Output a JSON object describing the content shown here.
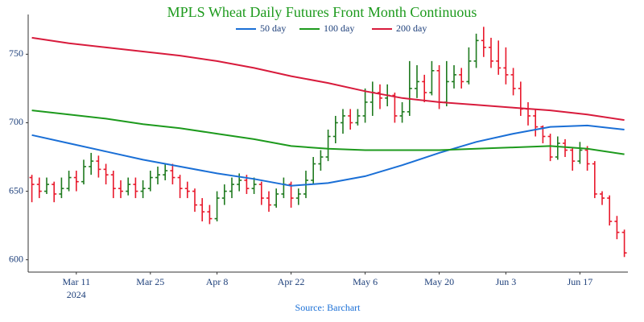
{
  "chart_data": {
    "type": "ohlc",
    "title": "MPLS Wheat Daily Futures Front Month Continuous",
    "source": "Source: Barchart",
    "categories": [
      "Mar 1",
      "Mar 4",
      "Mar 5",
      "Mar 6",
      "Mar 7",
      "Mar 8",
      "Mar 11",
      "Mar 12",
      "Mar 13",
      "Mar 14",
      "Mar 15",
      "Mar 18",
      "Mar 19",
      "Mar 20",
      "Mar 21",
      "Mar 22",
      "Mar 25",
      "Mar 26",
      "Mar 27",
      "Mar 28",
      "Apr 1",
      "Apr 2",
      "Apr 3",
      "Apr 4",
      "Apr 5",
      "Apr 8",
      "Apr 9",
      "Apr 10",
      "Apr 11",
      "Apr 12",
      "Apr 15",
      "Apr 16",
      "Apr 17",
      "Apr 18",
      "Apr 19",
      "Apr 22",
      "Apr 23",
      "Apr 24",
      "Apr 25",
      "Apr 26",
      "Apr 29",
      "Apr 30",
      "May 1",
      "May 2",
      "May 3",
      "May 6",
      "May 7",
      "May 8",
      "May 9",
      "May 10",
      "May 13",
      "May 14",
      "May 15",
      "May 16",
      "May 17",
      "May 20",
      "May 21",
      "May 22",
      "May 23",
      "May 24",
      "May 28",
      "May 29",
      "May 30",
      "May 31",
      "Jun 3",
      "Jun 4",
      "Jun 5",
      "Jun 6",
      "Jun 7",
      "Jun 10",
      "Jun 11",
      "Jun 12",
      "Jun 13",
      "Jun 14",
      "Jun 17",
      "Jun 18",
      "Jun 20",
      "Jun 21",
      "Jun 24",
      "Jun 25",
      "Jun 26"
    ],
    "open": [
      660,
      655,
      650,
      655,
      648,
      652,
      660,
      657,
      668,
      672,
      666,
      662,
      652,
      650,
      655,
      650,
      652,
      660,
      662,
      665,
      660,
      652,
      650,
      640,
      635,
      630,
      645,
      650,
      655,
      658,
      652,
      655,
      645,
      640,
      648,
      655,
      645,
      648,
      658,
      670,
      675,
      690,
      700,
      705,
      700,
      705,
      715,
      722,
      718,
      720,
      705,
      708,
      725,
      730,
      722,
      738,
      715,
      730,
      735,
      730,
      745,
      760,
      755,
      745,
      740,
      735,
      725,
      710,
      705,
      697,
      690,
      675,
      685,
      680,
      672,
      680,
      670,
      648,
      645,
      628,
      620
    ],
    "high": [
      662,
      660,
      660,
      657,
      660,
      665,
      665,
      673,
      678,
      676,
      670,
      665,
      658,
      660,
      660,
      658,
      665,
      668,
      670,
      670,
      662,
      657,
      652,
      645,
      640,
      650,
      655,
      660,
      663,
      662,
      660,
      657,
      650,
      652,
      660,
      657,
      652,
      665,
      675,
      680,
      695,
      705,
      710,
      710,
      710,
      725,
      730,
      728,
      728,
      722,
      715,
      745,
      742,
      735,
      745,
      742,
      745,
      742,
      740,
      755,
      765,
      770,
      762,
      760,
      755,
      740,
      730,
      715,
      710,
      698,
      692,
      690,
      688,
      682,
      686,
      683,
      672,
      650,
      647,
      632,
      622
    ],
    "low": [
      642,
      645,
      648,
      642,
      645,
      650,
      650,
      655,
      662,
      660,
      655,
      645,
      645,
      647,
      645,
      645,
      650,
      655,
      658,
      655,
      645,
      645,
      635,
      628,
      626,
      628,
      640,
      645,
      650,
      648,
      648,
      640,
      635,
      638,
      645,
      638,
      640,
      645,
      655,
      665,
      672,
      685,
      692,
      695,
      698,
      700,
      705,
      710,
      712,
      700,
      700,
      705,
      718,
      715,
      720,
      710,
      712,
      725,
      725,
      728,
      740,
      748,
      740,
      735,
      728,
      720,
      705,
      698,
      690,
      685,
      672,
      673,
      675,
      665,
      670,
      665,
      645,
      640,
      625,
      615,
      602
    ],
    "close": [
      655,
      650,
      655,
      648,
      652,
      660,
      657,
      668,
      672,
      666,
      662,
      652,
      650,
      655,
      650,
      652,
      660,
      662,
      665,
      660,
      652,
      650,
      640,
      635,
      630,
      645,
      650,
      655,
      658,
      652,
      655,
      645,
      640,
      648,
      655,
      645,
      648,
      658,
      670,
      675,
      690,
      700,
      705,
      700,
      705,
      715,
      722,
      718,
      720,
      705,
      708,
      725,
      730,
      722,
      738,
      715,
      730,
      735,
      730,
      745,
      760,
      755,
      745,
      740,
      735,
      725,
      710,
      705,
      697,
      690,
      675,
      685,
      680,
      672,
      680,
      670,
      648,
      645,
      628,
      620,
      605
    ],
    "up_color": "#1f7a1f",
    "down_color": "#e8192c",
    "moving_averages": [
      {
        "name": "50 day",
        "color": "#1a6fd6",
        "x": [
          "Mar 1",
          "Mar 8",
          "Mar 15",
          "Mar 22",
          "Apr 1",
          "Apr 8",
          "Apr 15",
          "Apr 22",
          "Apr 29",
          "May 6",
          "May 13",
          "May 20",
          "May 28",
          "Jun 4",
          "Jun 11",
          "Jun 18",
          "Jun 26"
        ],
        "values": [
          691,
          685,
          679,
          673,
          668,
          663,
          659,
          654,
          656,
          661,
          669,
          678,
          686,
          692,
          697,
          698,
          695
        ]
      },
      {
        "name": "100 day",
        "color": "#1d9a1d",
        "x": [
          "Mar 1",
          "Mar 8",
          "Mar 15",
          "Mar 22",
          "Apr 1",
          "Apr 8",
          "Apr 15",
          "Apr 22",
          "Apr 29",
          "May 6",
          "May 13",
          "May 20",
          "May 28",
          "Jun 4",
          "Jun 11",
          "Jun 18",
          "Jun 26"
        ],
        "values": [
          709,
          706,
          703,
          699,
          696,
          692,
          688,
          683,
          681,
          680,
          680,
          680,
          681,
          682,
          683,
          681,
          677
        ]
      },
      {
        "name": "200 day",
        "color": "#d81b3c",
        "x": [
          "Mar 1",
          "Mar 8",
          "Mar 15",
          "Mar 22",
          "Apr 1",
          "Apr 8",
          "Apr 15",
          "Apr 22",
          "Apr 29",
          "May 6",
          "May 13",
          "May 20",
          "May 28",
          "Jun 4",
          "Jun 11",
          "Jun 18",
          "Jun 26"
        ],
        "values": [
          762,
          758,
          755,
          752,
          749,
          745,
          740,
          734,
          729,
          723,
          718,
          715,
          713,
          711,
          709,
          706,
          702
        ]
      }
    ],
    "xticks": [
      "Mar 11",
      "Mar 25",
      "Apr 8",
      "Apr 22",
      "May 6",
      "May 20",
      "Jun 3",
      "Jun 17"
    ],
    "xtick_year": "2024",
    "ylim": [
      591,
      779
    ],
    "yticks": [
      600,
      650,
      700,
      750
    ],
    "grid": false
  }
}
